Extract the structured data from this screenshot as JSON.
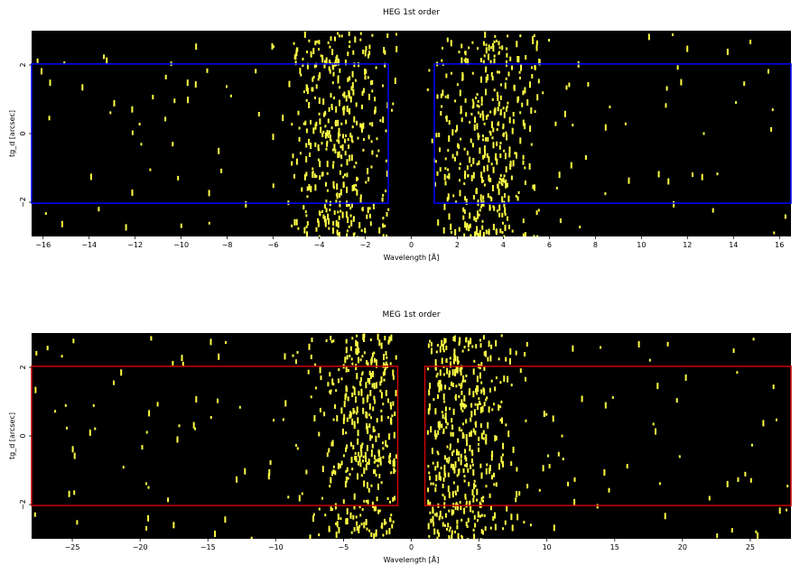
{
  "chart_data": [
    {
      "type": "heatmap",
      "title": "HEG 1st order",
      "xlabel": "Wavelength [Å]",
      "ylabel": "tg_d [arcsec]",
      "xlim": [
        -16.5,
        16.5
      ],
      "ylim": [
        -3,
        3
      ],
      "xticks": [
        -16,
        -14,
        -12,
        -10,
        -8,
        -6,
        -4,
        -2,
        0,
        2,
        4,
        6,
        8,
        10,
        12,
        14,
        16
      ],
      "yticks": [
        -2,
        0,
        2
      ],
      "background": "#000000",
      "event_color": "#ffff44",
      "extraction_color": "#0000ff",
      "extraction_regions": [
        {
          "x": [
            -16.5,
            -1.0
          ],
          "y": [
            -2.03,
            2.03
          ]
        },
        {
          "x": [
            1.0,
            16.5
          ],
          "y": [
            -2.03,
            2.03
          ]
        }
      ],
      "event_density_peaks": [
        -3.2,
        3.3
      ]
    },
    {
      "type": "heatmap",
      "title": "MEG 1st order",
      "xlabel": "Wavelength [Å]",
      "ylabel": "tg_d [arcsec]",
      "xlim": [
        -28,
        28
      ],
      "ylim": [
        -3,
        3
      ],
      "xticks": [
        -25,
        -20,
        -15,
        -10,
        -5,
        0,
        5,
        10,
        15,
        20,
        25
      ],
      "yticks": [
        -2,
        0,
        2
      ],
      "background": "#000000",
      "event_color": "#ffff44",
      "extraction_color": "#cc0000",
      "extraction_regions": [
        {
          "x": [
            -28,
            -1.0
          ],
          "y": [
            -2.03,
            2.03
          ]
        },
        {
          "x": [
            1.0,
            28
          ],
          "y": [
            -2.03,
            2.03
          ]
        }
      ],
      "event_density_peaks": [
        -3.2,
        3.4
      ]
    }
  ]
}
